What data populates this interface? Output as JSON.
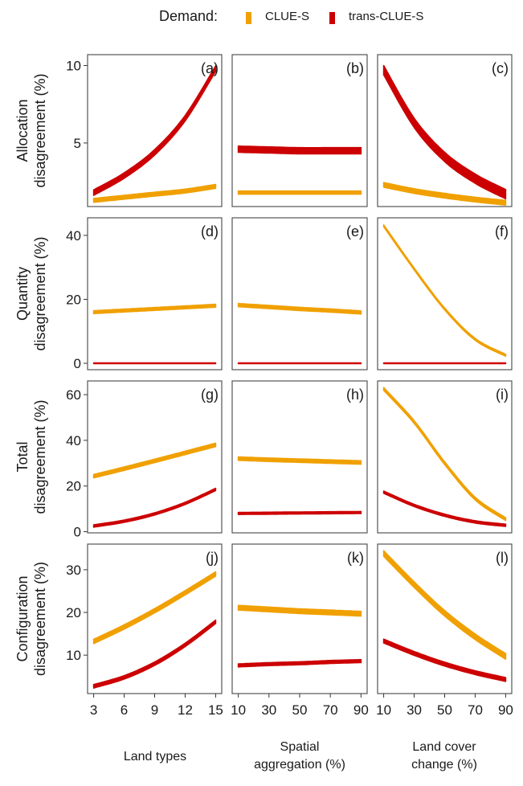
{
  "legend": {
    "title": "Demand:",
    "entries": [
      {
        "name": "CLUE-S",
        "color": "#F0A000"
      },
      {
        "name": "trans-CLUE-S",
        "color": "#CC0000"
      }
    ]
  },
  "chart_data": {
    "type": "line",
    "layout": "facet-grid 4 rows x 3 columns",
    "legend": {
      "title": "Demand:",
      "position": "top",
      "entries": [
        "CLUE-S",
        "trans-CLUE-S"
      ]
    },
    "columns": [
      {
        "xlabel": "Land types",
        "x": [
          3,
          6,
          9,
          12,
          15
        ],
        "xticks": [
          "3",
          "6",
          "9",
          "12",
          "15"
        ],
        "xlim": [
          2.4,
          15.6
        ]
      },
      {
        "xlabel": "Spatial aggregation (%)",
        "x": [
          10,
          30,
          50,
          70,
          90
        ],
        "xticks": [
          "10",
          "30",
          "50",
          "70",
          "90"
        ],
        "xlim": [
          6,
          94
        ]
      },
      {
        "xlabel": "Land cover change (%)",
        "x": [
          10,
          30,
          50,
          70,
          90
        ],
        "xticks": [
          "10",
          "30",
          "50",
          "70",
          "90"
        ],
        "xlim": [
          6,
          94
        ]
      }
    ],
    "rows": [
      {
        "ylabel_line1": "Allocation",
        "ylabel_line2": "disagreement (%)",
        "yticks": [
          "5",
          "10"
        ],
        "ytick_values": [
          5,
          10
        ],
        "ylim": [
          0.9,
          10.7
        ],
        "panels": [
          {
            "tag": "(a)",
            "series": [
              {
                "name": "CLUE-S",
                "values": [
                  1.3,
                  1.5,
                  1.7,
                  1.9,
                  2.2
                ],
                "band": 0.25
              },
              {
                "name": "trans-CLUE-S",
                "values": [
                  1.8,
                  2.9,
                  4.4,
                  6.6,
                  9.8
                ],
                "band": 0.35
              }
            ]
          },
          {
            "tag": "(b)",
            "series": [
              {
                "name": "CLUE-S",
                "values": [
                  1.8,
                  1.8,
                  1.8,
                  1.8,
                  1.8
                ],
                "band": 0.2
              },
              {
                "name": "trans-CLUE-S",
                "values": [
                  4.6,
                  4.55,
                  4.5,
                  4.5,
                  4.5
                ],
                "band": 0.4
              }
            ]
          },
          {
            "tag": "(c)",
            "series": [
              {
                "name": "CLUE-S",
                "values": [
                  2.3,
                  1.9,
                  1.6,
                  1.35,
                  1.15
                ],
                "band": 0.3
              },
              {
                "name": "trans-CLUE-S",
                "values": [
                  9.7,
                  6.3,
                  4.1,
                  2.7,
                  1.7
                ],
                "band": 0.6
              }
            ]
          }
        ]
      },
      {
        "ylabel_line1": "Quantity",
        "ylabel_line2": "disagreement (%)",
        "yticks": [
          "0",
          "20",
          "40"
        ],
        "ytick_values": [
          0,
          20,
          40
        ],
        "ylim": [
          -2,
          45.5
        ],
        "panels": [
          {
            "tag": "(d)",
            "series": [
              {
                "name": "CLUE-S",
                "values": [
                  16,
                  16.5,
                  17,
                  17.5,
                  18
                ],
                "band": 0.9
              },
              {
                "name": "trans-CLUE-S",
                "values": [
                  0,
                  0,
                  0,
                  0,
                  0
                ],
                "band": 0.2
              }
            ]
          },
          {
            "tag": "(e)",
            "series": [
              {
                "name": "CLUE-S",
                "values": [
                  18.2,
                  17.6,
                  17,
                  16.5,
                  15.9
                ],
                "band": 1.0
              },
              {
                "name": "trans-CLUE-S",
                "values": [
                  0,
                  0,
                  0,
                  0,
                  0
                ],
                "band": 0.2
              }
            ]
          },
          {
            "tag": "(f)",
            "series": [
              {
                "name": "CLUE-S",
                "values": [
                  43,
                  29.5,
                  17,
                  7.5,
                  2.5
                ],
                "band": 0.6
              },
              {
                "name": "trans-CLUE-S",
                "values": [
                  0,
                  0,
                  0,
                  0,
                  0
                ],
                "band": 0.2
              }
            ]
          }
        ]
      },
      {
        "ylabel_line1": "Total",
        "ylabel_line2": "disagreement (%)",
        "yticks": [
          "0",
          "20",
          "40",
          "60"
        ],
        "ytick_values": [
          0,
          20,
          40,
          60
        ],
        "ylim": [
          -0.5,
          66
        ],
        "panels": [
          {
            "tag": "(g)",
            "series": [
              {
                "name": "CLUE-S",
                "values": [
                  24.3,
                  27.6,
                  31,
                  34.5,
                  38
                ],
                "band": 1.5
              },
              {
                "name": "trans-CLUE-S",
                "values": [
                  2.5,
                  4.6,
                  7.8,
                  12.4,
                  18.5
                ],
                "band": 1.0
              }
            ]
          },
          {
            "tag": "(h)",
            "series": [
              {
                "name": "CLUE-S",
                "values": [
                  32,
                  31.5,
                  31.1,
                  30.7,
                  30.3
                ],
                "band": 1.5
              },
              {
                "name": "trans-CLUE-S",
                "values": [
                  8,
                  8.1,
                  8.2,
                  8.3,
                  8.4
                ],
                "band": 0.9
              }
            ]
          },
          {
            "tag": "(i)",
            "series": [
              {
                "name": "CLUE-S",
                "values": [
                  62.5,
                  48,
                  30,
                  14.5,
                  5.5
                ],
                "band": 1.2
              },
              {
                "name": "trans-CLUE-S",
                "values": [
                  17.3,
                  11.5,
                  7.2,
                  4.3,
                  2.8
                ],
                "band": 1.0
              }
            ]
          }
        ]
      },
      {
        "ylabel_line1": "Configuration",
        "ylabel_line2": "disagreement (%)",
        "yticks": [
          "10",
          "20",
          "30"
        ],
        "ytick_values": [
          10,
          20,
          30
        ],
        "ylim": [
          1,
          36
        ],
        "panels": [
          {
            "tag": "(j)",
            "series": [
              {
                "name": "CLUE-S",
                "values": [
                  13.2,
                  16.6,
                  20.4,
                  24.6,
                  29
                ],
                "band": 1.0
              },
              {
                "name": "trans-CLUE-S",
                "values": [
                  2.7,
                  4.8,
                  8,
                  12.4,
                  17.8
                ],
                "band": 0.8
              }
            ]
          },
          {
            "tag": "(k)",
            "series": [
              {
                "name": "CLUE-S",
                "values": [
                  21.1,
                  20.7,
                  20.3,
                  20,
                  19.7
                ],
                "band": 1.1
              },
              {
                "name": "trans-CLUE-S",
                "values": [
                  7.6,
                  7.9,
                  8.1,
                  8.4,
                  8.6
                ],
                "band": 0.7
              }
            ]
          },
          {
            "tag": "(l)",
            "series": [
              {
                "name": "CLUE-S",
                "values": [
                  33.8,
                  26.5,
                  19.8,
                  14.3,
                  9.7
                ],
                "band": 1.3
              },
              {
                "name": "trans-CLUE-S",
                "values": [
                  13.3,
                  10.4,
                  7.9,
                  5.9,
                  4.3
                ],
                "band": 0.9
              }
            ]
          }
        ]
      }
    ]
  }
}
